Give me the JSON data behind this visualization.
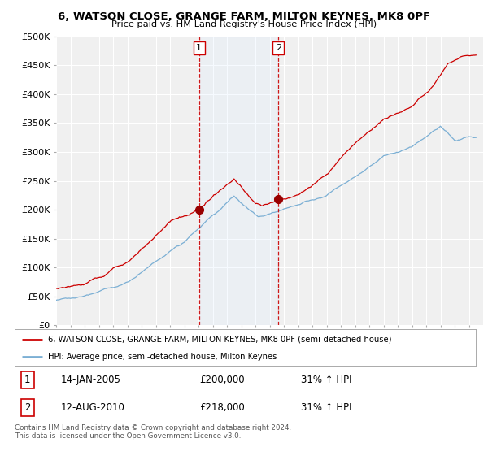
{
  "title": "6, WATSON CLOSE, GRANGE FARM, MILTON KEYNES, MK8 0PF",
  "subtitle": "Price paid vs. HM Land Registry's House Price Index (HPI)",
  "background_color": "#ffffff",
  "plot_bg_color": "#f0f0f0",
  "grid_color": "#ffffff",
  "ylim": [
    0,
    500000
  ],
  "yticks": [
    0,
    50000,
    100000,
    150000,
    200000,
    250000,
    300000,
    350000,
    400000,
    450000,
    500000
  ],
  "ytick_labels": [
    "£0",
    "£50K",
    "£100K",
    "£150K",
    "£200K",
    "£250K",
    "£300K",
    "£350K",
    "£400K",
    "£450K",
    "£500K"
  ],
  "sale1_date": "14-JAN-2005",
  "sale1_price": 200000,
  "sale1_hpi": "31%",
  "sale1_year": 2005.04,
  "sale2_date": "12-AUG-2010",
  "sale2_price": 218000,
  "sale2_hpi": "31%",
  "sale2_year": 2010.62,
  "legend_line1": "6, WATSON CLOSE, GRANGE FARM, MILTON KEYNES, MK8 0PF (semi-detached house)",
  "legend_line2": "HPI: Average price, semi-detached house, Milton Keynes",
  "footer": "Contains HM Land Registry data © Crown copyright and database right 2024.\nThis data is licensed under the Open Government Licence v3.0.",
  "red_line_color": "#cc0000",
  "blue_line_color": "#7bafd4",
  "shade_color": "#ddeeff",
  "vline_color": "#cc0000",
  "marker_color": "#990000"
}
